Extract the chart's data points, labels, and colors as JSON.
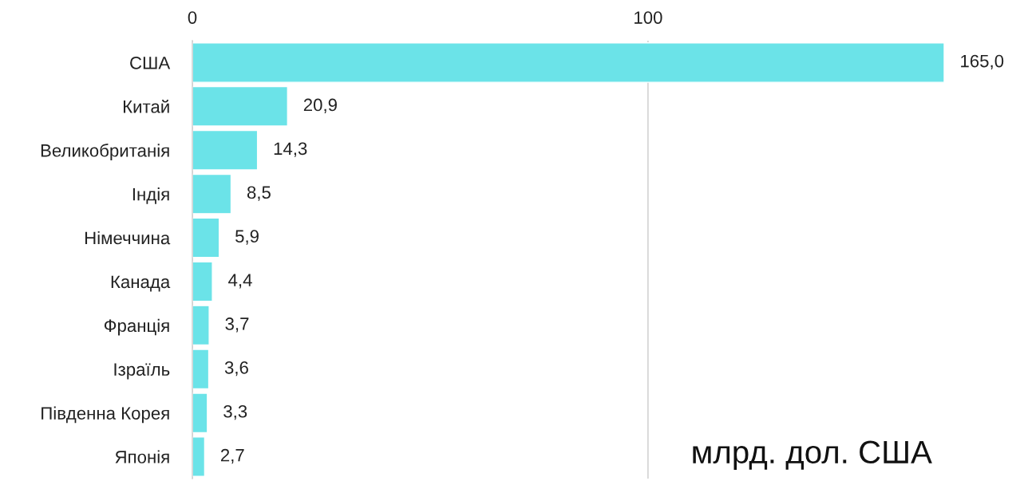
{
  "chart_data": {
    "type": "bar",
    "orientation": "horizontal",
    "categories": [
      "США",
      "Китай",
      "Великобританія",
      "Індія",
      "Німеччина",
      "Канада",
      "Франція",
      "Ізраїль",
      "Південна Корея",
      "Японія"
    ],
    "values": [
      165.0,
      20.9,
      14.3,
      8.5,
      5.9,
      4.4,
      3.7,
      3.6,
      3.3,
      2.7
    ],
    "value_labels": [
      "165,0",
      "20,9",
      "14,3",
      "8,5",
      "5,9",
      "4,4",
      "3,7",
      "3,6",
      "3,3",
      "2,7"
    ],
    "color": "#6be3e8",
    "xlim": [
      0,
      165
    ],
    "xticks": [
      0,
      100
    ],
    "grid": "x",
    "annotations": [
      "млрд. дол. США"
    ]
  }
}
